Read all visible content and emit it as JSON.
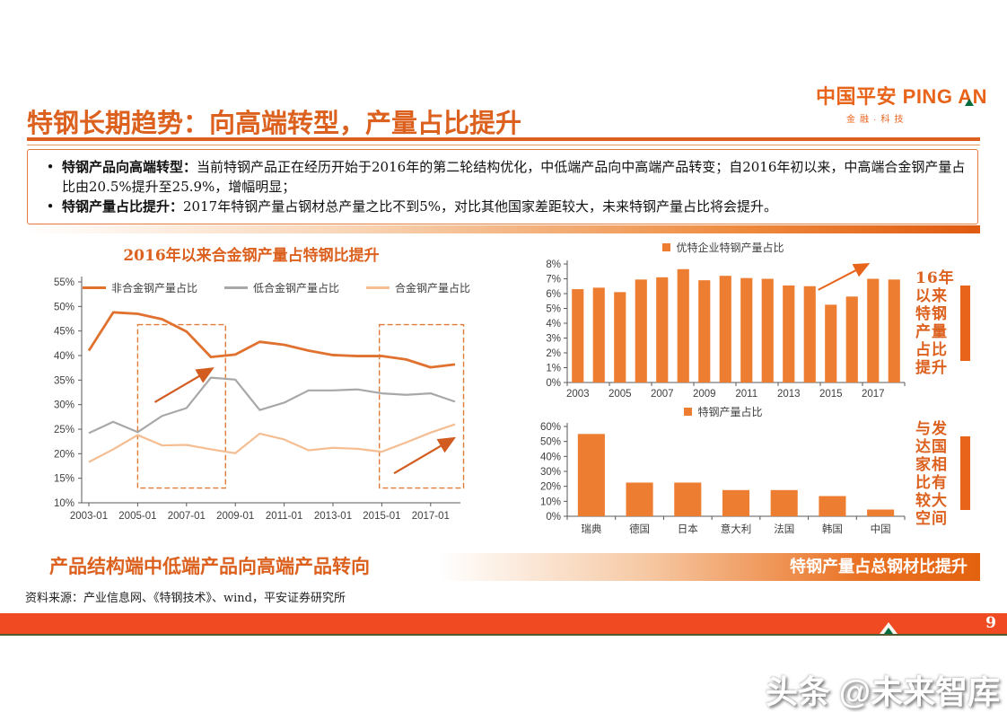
{
  "page": {
    "title": "特钢长期趋势：向高端转型，产量占比提升",
    "page_number": "9",
    "watermark": "头条 @未来智库",
    "source": "资料来源：产业信息网、《特钢技术》、wind，平安证券研究所"
  },
  "logo": {
    "cn": "中国平安",
    "en": "PING AN",
    "sub": "金融·科技"
  },
  "bullets": [
    {
      "lead": "特钢产品向高端转型：",
      "text": "当前特钢产品正在经历开始于2016年的第二轮结构优化，中低端产品向中高端产品转变；自2016年初以来，中高端合金钢产量占比由20.5%提升至25.9%，增幅明显；"
    },
    {
      "lead": "特钢产量占比提升：",
      "text": "2017年特钢产量占钢材总产量之比不到5%，对比其他国家差距较大，未来特钢产量占比将会提升。"
    }
  ],
  "captions": {
    "left": "产品结构端中低端产品向高端产品转向",
    "right_banner": "特钢产量占总钢材比提升",
    "side1": "16年以来特钢产量占比提升",
    "side2": "与发达国家相比有较大空间"
  },
  "colors": {
    "accent_orange": "#dc611f",
    "chart_orange": "#ed7d31",
    "line_gray": "#a8a8a8",
    "line_light_orange": "#f5bd92",
    "footer_orange": "#ef4a21",
    "brand_green": "#006b3c"
  },
  "chart_data": [
    {
      "type": "line",
      "title": "2016年以来合金钢产量占特钢比提升",
      "x_start_year": 2003,
      "x": [
        2003,
        2004,
        2005,
        2006,
        2007,
        2008,
        2009,
        2010,
        2011,
        2012,
        2013,
        2014,
        2015,
        2016,
        2017,
        2018
      ],
      "x_tick_labels": [
        "2003-01",
        "2005-01",
        "2007-01",
        "2009-01",
        "2011-01",
        "2013-01",
        "2015-01",
        "2017-01"
      ],
      "ylim": [
        10,
        55
      ],
      "ytick_step": 5,
      "annotation_color": "#d25b1f",
      "series": [
        {
          "name": "非合金钢产量占比",
          "color": "#e0712f",
          "values": [
            41.0,
            48.8,
            48.5,
            47.4,
            44.9,
            39.7,
            40.2,
            42.8,
            42.2,
            41.0,
            40.1,
            39.9,
            39.9,
            39.2,
            37.6,
            38.2
          ]
        },
        {
          "name": "低合金钢产量占比",
          "color": "#a8a8a8",
          "values": [
            24.2,
            26.5,
            24.4,
            27.7,
            29.3,
            35.5,
            35.1,
            28.9,
            30.4,
            32.9,
            32.9,
            33.1,
            32.3,
            32.0,
            32.3,
            30.6
          ]
        },
        {
          "name": "合金钢产量占比",
          "color": "#f5bd92",
          "values": [
            18.3,
            20.9,
            23.8,
            21.7,
            21.8,
            20.9,
            20.1,
            24.1,
            22.9,
            20.7,
            21.2,
            21.0,
            20.4,
            22.3,
            24.3,
            26.0
          ]
        }
      ],
      "annotations": {
        "dashed_boxes": [
          {
            "x0": 2005.0,
            "x1": 2008.6,
            "y0": 13,
            "y1": 46.3
          },
          {
            "x0": 2014.9,
            "x1": 2018.35,
            "y0": 13,
            "y1": 46.3
          }
        ],
        "arrows": [
          {
            "x0": 2005.7,
            "y0": 30.5,
            "x1": 2008.0,
            "y1": 37.2
          },
          {
            "x0": 2015.5,
            "y0": 16.0,
            "x1": 2017.9,
            "y1": 23.0
          }
        ]
      }
    },
    {
      "type": "bar",
      "legend": "优特企业特钢产量占比",
      "categories": [
        "2003",
        "2004",
        "2005",
        "2006",
        "2007",
        "2008",
        "2009",
        "2010",
        "2011",
        "2012",
        "2013",
        "2014",
        "2015",
        "2016",
        "2017",
        "2018"
      ],
      "values": [
        6.3,
        6.4,
        6.1,
        6.95,
        7.1,
        7.65,
        6.9,
        7.2,
        7.05,
        7.0,
        6.55,
        6.5,
        5.25,
        5.8,
        7.0,
        6.95
      ],
      "label_every": 2,
      "ylim": [
        0,
        8
      ],
      "ytick_step": 1,
      "bar_color": "#ed7d31",
      "annotation_color": "#e8641b",
      "arrow": {
        "x0": 11.4,
        "y0": 6.25,
        "x1": 13.7,
        "y1": 7.95
      }
    },
    {
      "type": "bar",
      "legend": "特钢产量占比",
      "categories": [
        "瑞典",
        "德国",
        "日本",
        "意大利",
        "法国",
        "韩国",
        "中国"
      ],
      "values": [
        55,
        22.5,
        22.5,
        17.5,
        17.5,
        13.5,
        4.5
      ],
      "label_every": 1,
      "ylim": [
        0,
        60
      ],
      "ytick_step": 10,
      "bar_color": "#ed7d31"
    }
  ]
}
